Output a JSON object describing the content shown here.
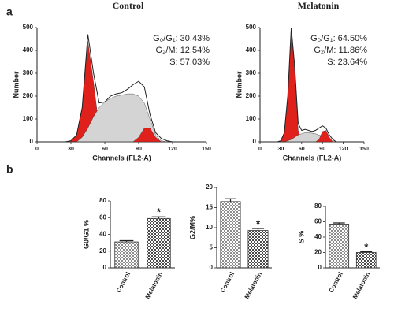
{
  "panel_labels": [
    "a",
    "b"
  ],
  "chart_data": [
    {
      "type": "line",
      "title": "Control",
      "xlabel": "Channels (FL2-A)",
      "ylabel": "Number",
      "x": [
        25,
        30,
        35,
        40,
        45,
        50,
        55,
        60,
        65,
        70,
        75,
        80,
        85,
        90,
        95,
        100,
        105,
        110,
        115,
        120
      ],
      "series": [
        {
          "color": "#e0201b",
          "fill": true,
          "values": [
            0,
            5,
            30,
            150,
            440,
            260,
            60,
            5,
            0,
            0,
            0,
            0,
            0,
            0,
            0,
            0,
            0,
            0,
            0,
            0
          ]
        },
        {
          "color": "#d4d4d4",
          "fill": true,
          "values": [
            0,
            0,
            0,
            20,
            60,
            110,
            150,
            175,
            190,
            200,
            205,
            210,
            210,
            200,
            170,
            100,
            30,
            5,
            0,
            0
          ]
        },
        {
          "color": "#e0201b",
          "fill": true,
          "values": [
            0,
            0,
            0,
            0,
            0,
            0,
            0,
            0,
            0,
            0,
            0,
            0,
            0,
            20,
            60,
            60,
            20,
            0,
            0,
            0
          ]
        },
        {
          "color": "#222222",
          "fill": false,
          "values": [
            0,
            5,
            30,
            150,
            470,
            300,
            170,
            175,
            200,
            210,
            215,
            230,
            250,
            265,
            240,
            120,
            40,
            15,
            5,
            0
          ]
        }
      ],
      "xlim": [
        0,
        150
      ],
      "xticks": [
        0,
        30,
        60,
        90,
        120,
        150
      ],
      "ylim": [
        0,
        500
      ],
      "yticks": [
        0,
        100,
        200,
        300,
        400,
        500
      ],
      "annotations": [
        "G₀/G₁: 30.43%",
        "G₂/M: 12.54%",
        "S: 57.03%"
      ]
    },
    {
      "type": "line",
      "title": "Melatonin",
      "xlabel": "Channels (FL2-A)",
      "ylabel": "Number",
      "x": [
        25,
        30,
        35,
        40,
        45,
        50,
        55,
        60,
        65,
        70,
        75,
        80,
        85,
        90,
        95,
        100,
        105,
        110,
        115,
        120
      ],
      "series": [
        {
          "color": "#e0201b",
          "fill": true,
          "values": [
            0,
            5,
            40,
            190,
            490,
            300,
            50,
            0,
            0,
            0,
            0,
            0,
            0,
            0,
            0,
            0,
            0,
            0,
            0,
            0
          ]
        },
        {
          "color": "#d4d4d4",
          "fill": true,
          "values": [
            0,
            0,
            0,
            5,
            10,
            20,
            30,
            35,
            40,
            40,
            38,
            35,
            30,
            25,
            15,
            5,
            0,
            0,
            0,
            0
          ]
        },
        {
          "color": "#e0201b",
          "fill": true,
          "values": [
            0,
            0,
            0,
            0,
            0,
            0,
            0,
            0,
            0,
            0,
            0,
            0,
            10,
            45,
            50,
            20,
            0,
            0,
            0,
            0
          ]
        },
        {
          "color": "#222222",
          "fill": false,
          "values": [
            0,
            5,
            40,
            200,
            500,
            330,
            80,
            50,
            55,
            50,
            45,
            50,
            60,
            70,
            60,
            30,
            10,
            0,
            0,
            0
          ]
        }
      ],
      "xlim": [
        0,
        150
      ],
      "xticks": [
        0,
        30,
        60,
        90,
        120,
        150
      ],
      "ylim": [
        0,
        500
      ],
      "yticks": [
        0,
        100,
        200,
        300,
        400,
        500
      ],
      "annotations": [
        "G₀/G₁: 64.50%",
        "G₂/M: 11.86%",
        "S: 23.64%"
      ]
    },
    {
      "type": "bar",
      "ylabel": "G0/G1 %",
      "categories": [
        "Control",
        "Melatonin"
      ],
      "values": [
        31,
        59
      ],
      "errors": [
        1.5,
        2
      ],
      "significance": [
        null,
        "*"
      ],
      "colors": [
        "#8c8c8c",
        "#4a4a4a"
      ],
      "ylim": [
        0,
        80
      ],
      "yticks": [
        0,
        20,
        40,
        60,
        80
      ]
    },
    {
      "type": "bar",
      "ylabel": "G2/M%",
      "categories": [
        "Control",
        "Melatonin"
      ],
      "values": [
        16.5,
        9.3
      ],
      "errors": [
        0.7,
        0.5
      ],
      "significance": [
        null,
        "*"
      ],
      "colors": [
        "#8c8c8c",
        "#4a4a4a"
      ],
      "ylim": [
        0,
        20
      ],
      "yticks": [
        0,
        5,
        10,
        15,
        20
      ]
    },
    {
      "type": "bar",
      "ylabel": "S %",
      "categories": [
        "Control",
        "Melatonin"
      ],
      "values": [
        57,
        20
      ],
      "errors": [
        1.5,
        1
      ],
      "significance": [
        null,
        "*"
      ],
      "colors": [
        "#8c8c8c",
        "#4a4a4a"
      ],
      "ylim": [
        0,
        80
      ],
      "yticks": [
        0,
        20,
        40,
        60,
        80
      ]
    }
  ]
}
